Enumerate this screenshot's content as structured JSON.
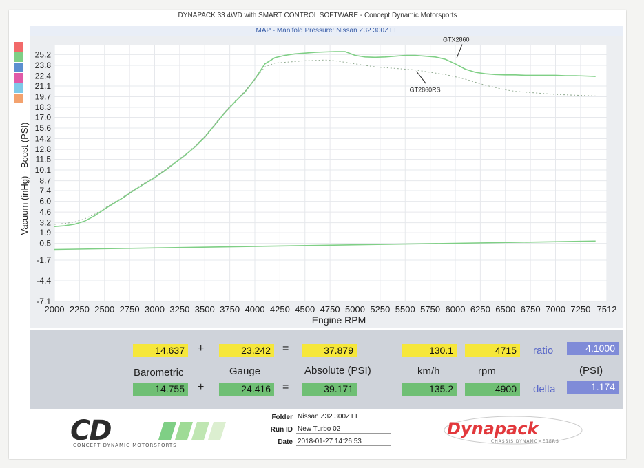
{
  "app_title": "DYNAPACK 33 4WD with SMART CONTROL SOFTWARE - Concept Dynamic Motorsports",
  "chart_title": "MAP - Manifold Pressure: Nissan Z32 300ZTT",
  "colors": {
    "series_line": "#7fcf85",
    "baseline": "#7fcf85",
    "gauge_yellow": "#f6e73a",
    "gauge_green": "#6fbf74",
    "gauge_blue": "#7f8bd8",
    "dynapack_red": "#e2383c"
  },
  "swatch_colors": [
    "#f26a6a",
    "#7fcf85",
    "#5c8fd0",
    "#e05aa8",
    "#7ec9e8",
    "#f3a26e"
  ],
  "chart_data": {
    "type": "line",
    "xlabel": "Engine RPM",
    "ylabel": "Vacuum (inHg) - Boost (PSI)",
    "xlim": [
      2000,
      7512
    ],
    "ylim": [
      -7.1,
      26.5
    ],
    "x_ticks": [
      "2000",
      "2250",
      "2500",
      "2750",
      "3000",
      "3250",
      "3500",
      "3750",
      "4000",
      "4250",
      "4500",
      "4750",
      "5000",
      "5250",
      "5500",
      "5750",
      "6000",
      "6250",
      "6500",
      "6750",
      "7000",
      "7250",
      "7512"
    ],
    "y_ticks": [
      "25.2",
      "23.8",
      "22.4",
      "21.1",
      "19.7",
      "18.3",
      "17.0",
      "15.6",
      "14.2",
      "12.8",
      "11.5",
      "10.1",
      "8.7",
      "7.4",
      "6.0",
      "4.6",
      "3.2",
      "1.9",
      "0.5",
      "-1.7",
      "-4.4",
      "-7.1"
    ],
    "grid": true,
    "series": [
      {
        "name": "GTX2860",
        "color": "#7fcf85",
        "style": "solid",
        "x": [
          2000,
          2100,
          2200,
          2300,
          2400,
          2500,
          2600,
          2700,
          2800,
          2900,
          3000,
          3100,
          3200,
          3300,
          3400,
          3500,
          3600,
          3700,
          3800,
          3900,
          4000,
          4100,
          4200,
          4300,
          4400,
          4500,
          4600,
          4700,
          4800,
          4900,
          5000,
          5100,
          5200,
          5300,
          5400,
          5500,
          5600,
          5700,
          5800,
          5900,
          6000,
          6100,
          6200,
          6300,
          6400,
          6500,
          6600,
          6700,
          6800,
          6900,
          7000,
          7100,
          7200,
          7300,
          7400
        ],
        "y": [
          2.7,
          2.8,
          3.0,
          3.4,
          4.1,
          5.0,
          5.8,
          6.6,
          7.5,
          8.3,
          9.1,
          10.0,
          11.0,
          12.0,
          13.1,
          14.4,
          16.0,
          17.6,
          19.0,
          20.3,
          22.0,
          24.0,
          24.8,
          25.1,
          25.3,
          25.4,
          25.5,
          25.55,
          25.6,
          25.6,
          25.1,
          24.9,
          24.85,
          24.9,
          25.0,
          25.1,
          25.1,
          25.0,
          24.9,
          24.6,
          24.0,
          23.3,
          22.9,
          22.7,
          22.6,
          22.55,
          22.55,
          22.5,
          22.5,
          22.5,
          22.5,
          22.45,
          22.45,
          22.4,
          22.35
        ]
      },
      {
        "name": "GT2860RS",
        "color": "#8fa98f",
        "style": "dotted",
        "x": [
          2000,
          2100,
          2200,
          2300,
          2400,
          2500,
          2600,
          2700,
          2800,
          2900,
          3000,
          3100,
          3200,
          3300,
          3400,
          3500,
          3600,
          3700,
          3800,
          3900,
          4000,
          4100,
          4200,
          4300,
          4400,
          4500,
          4600,
          4700,
          4800,
          4900,
          5000,
          5100,
          5200,
          5300,
          5400,
          5500,
          5600,
          5700,
          5800,
          5900,
          6000,
          6100,
          6200,
          6300,
          6400,
          6500,
          6600,
          6700,
          6800,
          6900,
          7000,
          7100,
          7200,
          7300,
          7400
        ],
        "y": [
          3.0,
          3.1,
          3.3,
          3.7,
          4.3,
          5.1,
          5.9,
          6.7,
          7.6,
          8.4,
          9.2,
          10.1,
          11.1,
          12.1,
          13.2,
          14.5,
          16.1,
          17.7,
          19.1,
          20.4,
          22.0,
          23.6,
          24.1,
          24.2,
          24.3,
          24.4,
          24.45,
          24.5,
          24.4,
          24.2,
          24.0,
          23.8,
          23.6,
          23.5,
          23.4,
          23.3,
          23.2,
          23.0,
          22.8,
          22.6,
          22.3,
          22.0,
          21.6,
          21.2,
          20.9,
          20.6,
          20.4,
          20.3,
          20.2,
          20.1,
          20.0,
          19.95,
          19.9,
          19.85,
          19.8
        ]
      },
      {
        "name": "",
        "color": "#7fcf85",
        "style": "solid",
        "x": [
          2000,
          7400
        ],
        "y": [
          -0.3,
          0.8
        ]
      }
    ],
    "annotations": [
      {
        "text": "GTX2860",
        "x": 6000,
        "y": 24.2
      },
      {
        "text": "GT2860RS",
        "x": 5750,
        "y": 23.2
      }
    ]
  },
  "readout": {
    "row1": {
      "barometric": "14.637",
      "gauge": "23.242",
      "absolute": "37.879",
      "kmh": "130.1",
      "rpm": "4715",
      "ratio_label": "ratio",
      "ratio": "4.1000"
    },
    "labels": {
      "barometric": "Barometric",
      "gauge": "Gauge",
      "absolute": "Absolute (PSI)",
      "kmh": "km/h",
      "rpm": "rpm",
      "psi": "(PSI)"
    },
    "row2": {
      "barometric": "14.755",
      "gauge": "24.416",
      "absolute": "39.171",
      "kmh": "135.2",
      "rpm": "4900",
      "delta_label": "delta",
      "delta": "1.174"
    },
    "plus": "+",
    "equals": "="
  },
  "footer": {
    "folder_label": "Folder",
    "folder": "Nissan Z32 300ZTT",
    "runid_label": "Run ID",
    "runid": "New Turbo 02",
    "date_label": "Date",
    "date": "2018-01-27 14:26:53",
    "cd_logo_text": "CD",
    "cd_tagline": "CONCEPT DYNAMIC MOTORSPORTS",
    "dyna_logo_text": "Dynapack",
    "dyna_tagline": "CHASSIS DYNAMOMETERS"
  }
}
